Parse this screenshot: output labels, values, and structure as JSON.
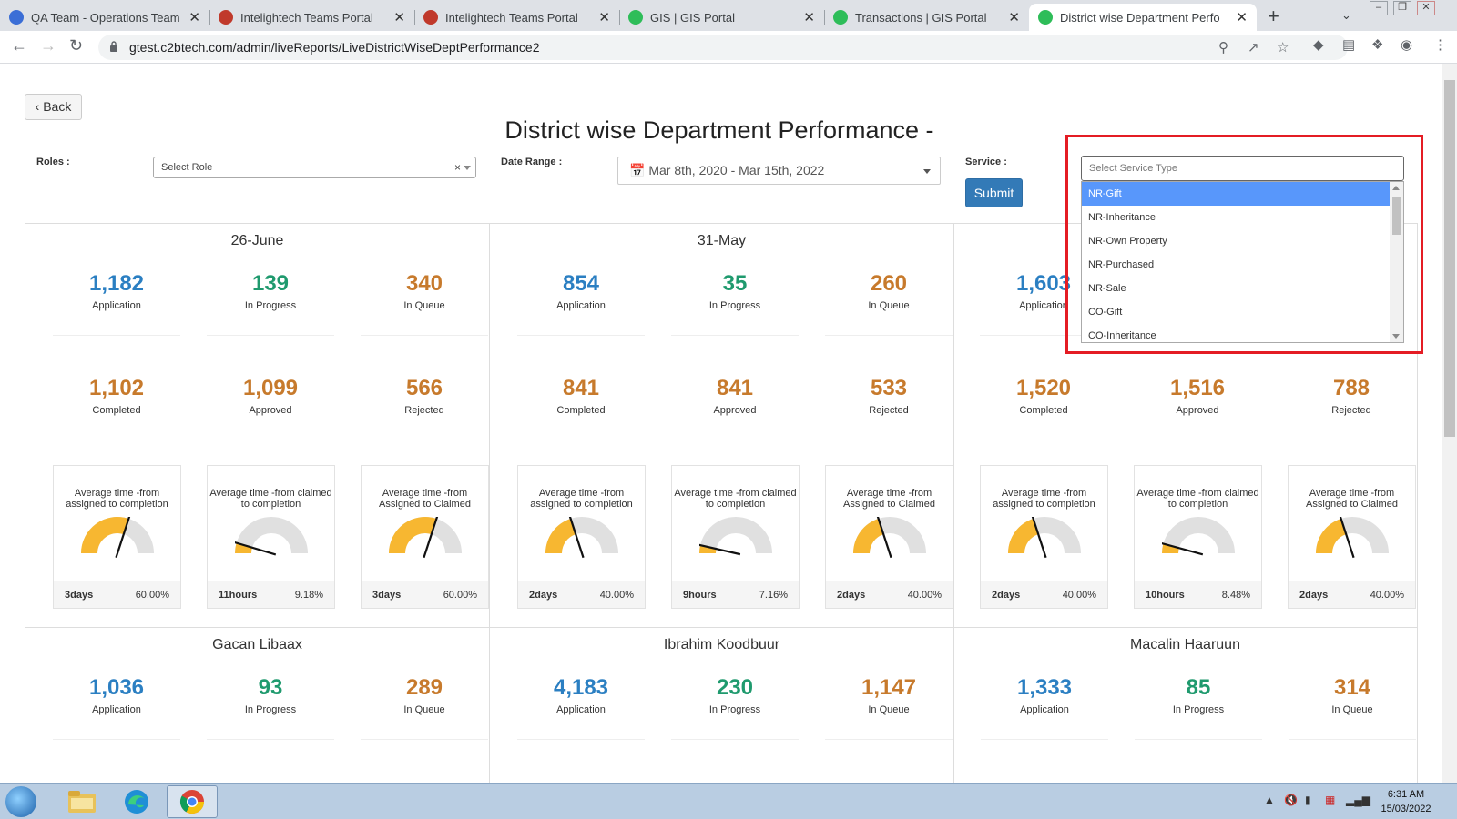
{
  "browser": {
    "tabs": [
      {
        "title": "QA Team - Operations Team Co",
        "favicon_color": "#3b6ed6",
        "active": false
      },
      {
        "title": "Intelightech Teams Portal",
        "favicon_color": "#c0392b",
        "active": false
      },
      {
        "title": "Intelightech Teams Portal",
        "favicon_color": "#c0392b",
        "active": false
      },
      {
        "title": "GIS | GIS Portal",
        "favicon_color": "#2ebd59",
        "active": false
      },
      {
        "title": "Transactions | GIS Portal",
        "favicon_color": "#2ebd59",
        "active": false
      },
      {
        "title": "District wise Department Perfo",
        "favicon_color": "#2ebd59",
        "active": true
      }
    ],
    "new_tab_icon": "+",
    "url": "gtest.c2btech.com/admin/liveReports/LiveDistrictWiseDeptPerformance2"
  },
  "page": {
    "back_label": "Back",
    "title": "District wise Department Performance -",
    "roles_label": "Roles :",
    "role_placeholder": "Select Role",
    "date_label": "Date Range :",
    "date_value": "Mar 8th, 2020 - Mar 15th, 2022",
    "service_label": "Service :",
    "submit_label": "Submit",
    "service_placeholder": "Select Service Type",
    "service_options": [
      "NR-Gift",
      "NR-Inheritance",
      "NR-Own Property",
      "NR-Purchased",
      "NR-Sale",
      "CO-Gift",
      "CO-Inheritance"
    ],
    "service_selected_index": 0
  },
  "stat_labels": {
    "application": "Application",
    "in_progress": "In Progress",
    "in_queue": "In Queue",
    "completed": "Completed",
    "approved": "Approved",
    "rejected": "Rejected"
  },
  "gauge_titles": {
    "a2c": "Average time -from assigned to completion",
    "c2c": "Average time -from claimed to completion",
    "a2cl": "Average time -from Assigned to Claimed"
  },
  "districts": [
    {
      "name": "26-June",
      "application": "1,182",
      "in_progress": "139",
      "in_queue": "340",
      "completed": "1,102",
      "approved": "1,099",
      "rejected": "566",
      "gauges": [
        {
          "time": "3days",
          "percent": "60.00%",
          "fraction": 0.6
        },
        {
          "time": "11hours",
          "percent": "9.18%",
          "fraction": 0.0918
        },
        {
          "time": "3days",
          "percent": "60.00%",
          "fraction": 0.6
        }
      ]
    },
    {
      "name": "31-May",
      "application": "854",
      "in_progress": "35",
      "in_queue": "260",
      "completed": "841",
      "approved": "841",
      "rejected": "533",
      "gauges": [
        {
          "time": "2days",
          "percent": "40.00%",
          "fraction": 0.4
        },
        {
          "time": "9hours",
          "percent": "7.16%",
          "fraction": 0.0716
        },
        {
          "time": "2days",
          "percent": "40.00%",
          "fraction": 0.4
        }
      ]
    },
    {
      "name": "",
      "application": "1,603",
      "in_progress": "",
      "in_queue": "",
      "completed": "1,520",
      "approved": "1,516",
      "rejected": "788",
      "gauges": [
        {
          "time": "2days",
          "percent": "40.00%",
          "fraction": 0.4
        },
        {
          "time": "10hours",
          "percent": "8.48%",
          "fraction": 0.0848
        },
        {
          "time": "2days",
          "percent": "40.00%",
          "fraction": 0.4
        }
      ]
    },
    {
      "name": "Gacan Libaax",
      "application": "1,036",
      "in_progress": "93",
      "in_queue": "289"
    },
    {
      "name": "Ibrahim Koodbuur",
      "application": "4,183",
      "in_progress": "230",
      "in_queue": "1,147"
    },
    {
      "name": "Macalin Haaruun",
      "application": "1,333",
      "in_progress": "85",
      "in_queue": "314"
    }
  ],
  "colors": {
    "blue": "#2b7fc2",
    "green": "#1f9a6e",
    "orange": "#c77a2c",
    "gauge_fill": "#f7b731",
    "gauge_track": "#e0e0e0",
    "highlight_box": "#e41c24",
    "submit": "#337ab7"
  },
  "taskbar": {
    "time": "6:31 AM",
    "date": "15/03/2022"
  }
}
